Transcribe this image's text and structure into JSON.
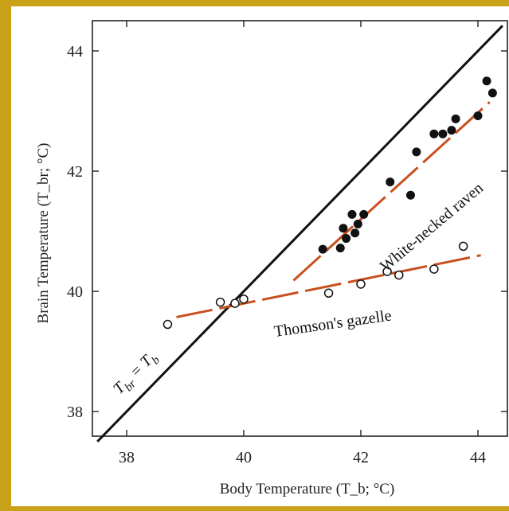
{
  "chart_data": {
    "type": "scatter",
    "title": "",
    "xlabel": "Body Temperature (T_b; °C)",
    "ylabel": "Brain Temperature (T_br; °C)",
    "xlim": [
      37.5,
      44.3
    ],
    "ylim": [
      37.5,
      44.5
    ],
    "x_ticks": [
      38,
      40,
      42,
      44
    ],
    "y_ticks": [
      38,
      40,
      42,
      44
    ],
    "x_tick_labels": [
      "38",
      "40",
      "42",
      "44"
    ],
    "y_tick_labels": [
      "38",
      "40",
      "42",
      "44"
    ],
    "grid": false,
    "colors": {
      "frame": "#c9a21a",
      "identity_line": "#111111",
      "trend_line": "#c8501e",
      "markers": "#111111"
    },
    "series": [
      {
        "name": "White-necked raven",
        "marker": "filled-circle",
        "points": [
          [
            41.35,
            40.7
          ],
          [
            41.65,
            40.72
          ],
          [
            41.7,
            41.05
          ],
          [
            41.75,
            40.88
          ],
          [
            41.85,
            41.28
          ],
          [
            41.9,
            40.97
          ],
          [
            41.95,
            41.12
          ],
          [
            42.05,
            41.28
          ],
          [
            42.5,
            41.82
          ],
          [
            42.85,
            41.6
          ],
          [
            42.95,
            42.32
          ],
          [
            43.25,
            42.62
          ],
          [
            43.4,
            42.62
          ],
          [
            43.55,
            42.68
          ],
          [
            43.62,
            42.87
          ],
          [
            44.0,
            42.92
          ],
          [
            44.15,
            43.5
          ],
          [
            44.25,
            43.3
          ]
        ],
        "trend": {
          "from": [
            40.85,
            40.18
          ],
          "to": [
            44.2,
            43.15
          ],
          "style": "dashed"
        }
      },
      {
        "name": "Thomson's gazelle",
        "marker": "open-circle",
        "points": [
          [
            38.7,
            39.45
          ],
          [
            39.6,
            39.82
          ],
          [
            39.85,
            39.8
          ],
          [
            40.0,
            39.87
          ],
          [
            41.45,
            39.97
          ],
          [
            42.0,
            40.12
          ],
          [
            42.45,
            40.33
          ],
          [
            42.65,
            40.27
          ],
          [
            43.25,
            40.37
          ],
          [
            43.75,
            40.75
          ]
        ],
        "trend": {
          "from": [
            38.85,
            39.57
          ],
          "to": [
            44.05,
            40.6
          ],
          "style": "dashed"
        }
      }
    ],
    "annotations": [
      {
        "text": "White-necked raven"
      },
      {
        "text": "Thomson's gazelle"
      }
    ],
    "identity_line": {
      "label_main_1": "T",
      "label_sub_1": "br",
      "label_eq": " = T",
      "label_sub_2": "b"
    }
  }
}
